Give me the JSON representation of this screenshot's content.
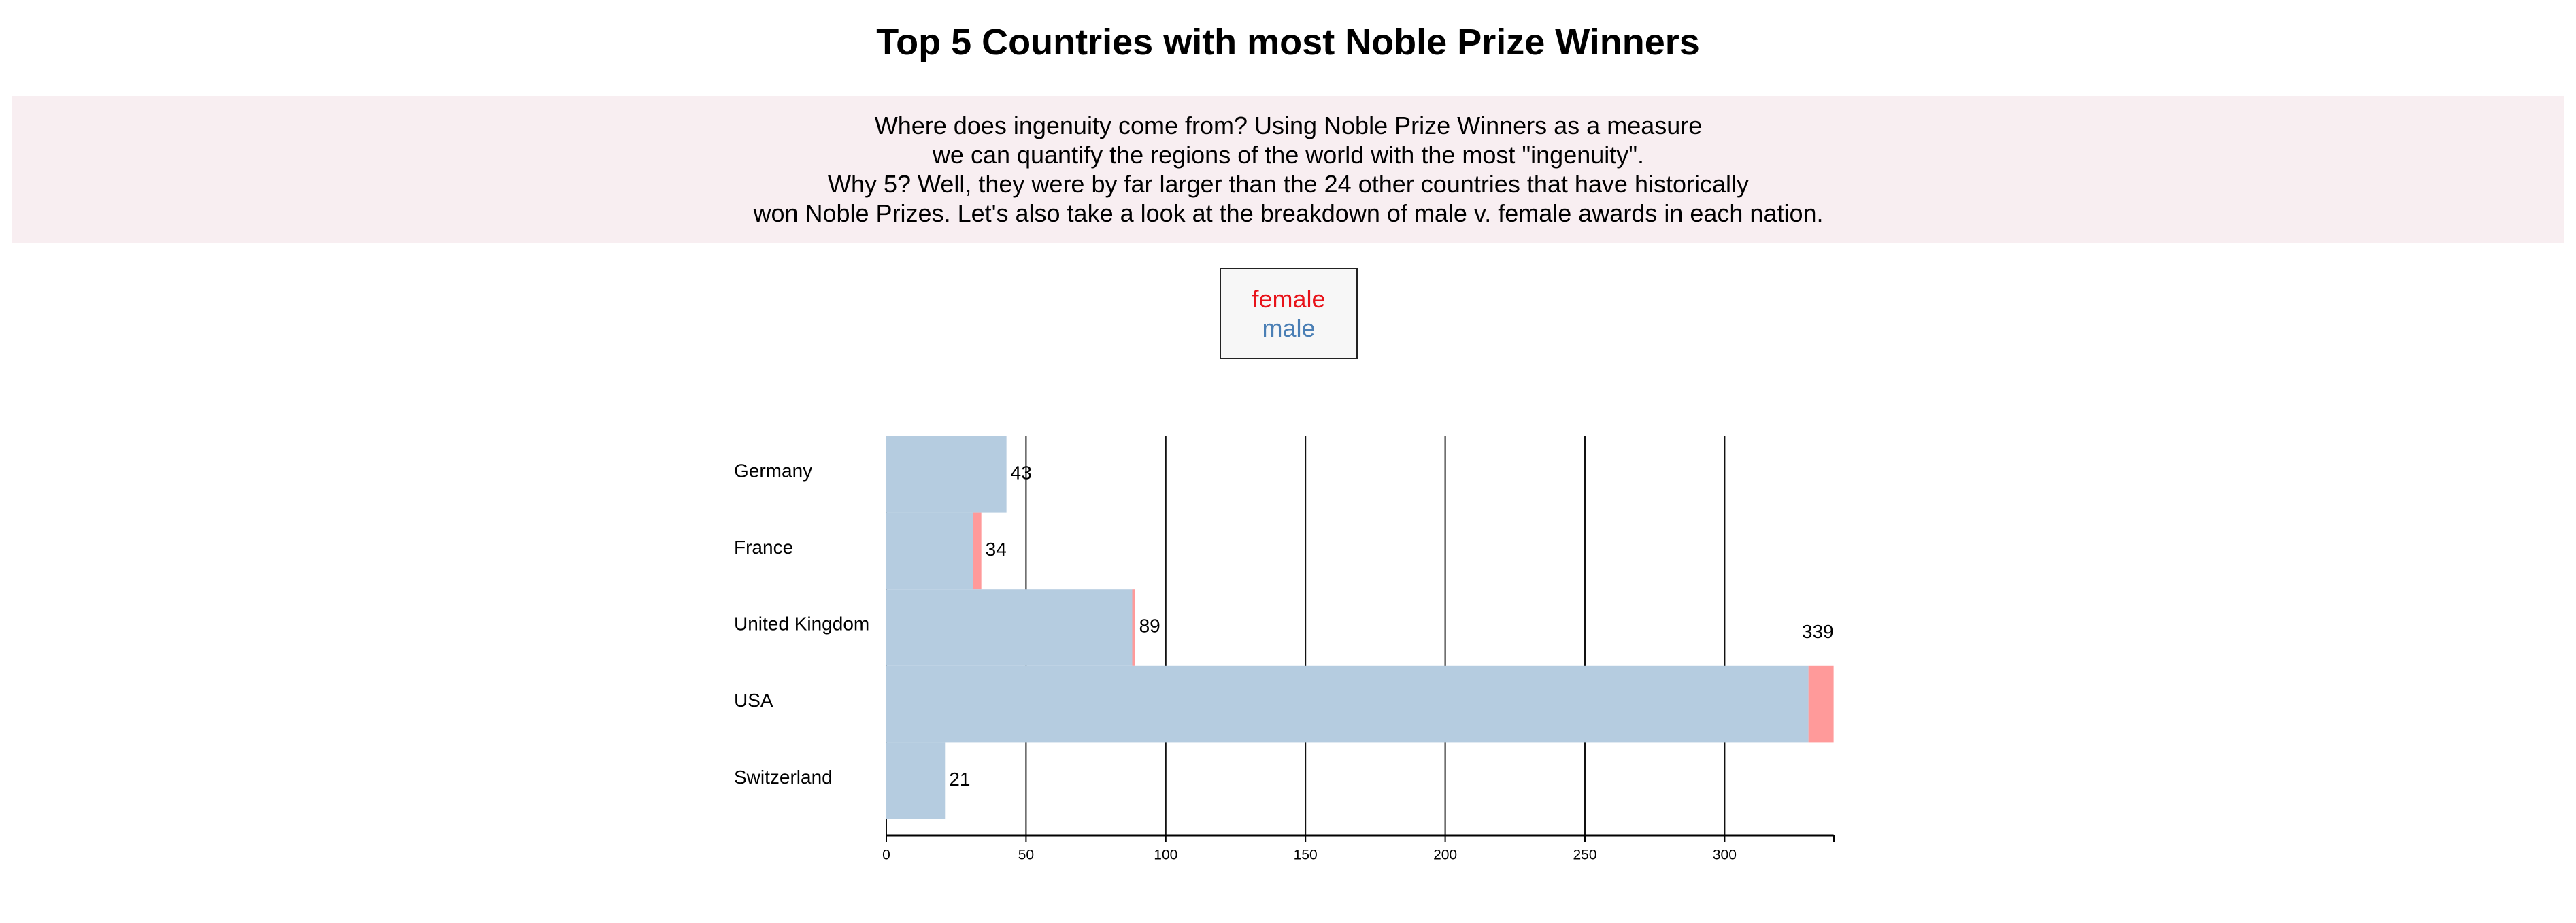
{
  "title": "Top 5 Countries with most Noble Prize Winners",
  "intro_lines": [
    "Where does ingenuity come from? Using Noble Prize Winners as a measure",
    "we can quantify the regions of the world with the most \"ingenuity\".",
    "Why 5? Well, they were by far larger than the 24 other countries that have historically",
    "won Noble Prizes. Let's also take a look at the breakdown of male v. female awards in each nation."
  ],
  "colors": {
    "female": "#ff9a9a",
    "male": "#b5cce0",
    "legend_female_text": "#e8131a",
    "legend_male_text": "#4a7fb5",
    "panel_background": "#f8eef1"
  },
  "legend": [
    {
      "label": "female",
      "color_key": "legend_female_text"
    },
    {
      "label": "male",
      "color_key": "legend_male_text"
    }
  ],
  "chart_data": {
    "type": "bar",
    "orientation": "horizontal",
    "stacked": true,
    "title": "Top 5 Countries with most Noble Prize Winners",
    "xlabel": "",
    "ylabel": "",
    "categories": [
      "Germany",
      "France",
      "United Kingdom",
      "USA",
      "Switzerland"
    ],
    "series": [
      {
        "name": "male",
        "values": [
          43,
          31,
          88,
          330,
          21
        ]
      },
      {
        "name": "female",
        "values": [
          0,
          3,
          1,
          9,
          0
        ]
      }
    ],
    "totals": [
      43,
      34,
      89,
      339,
      21
    ],
    "xlim": [
      0,
      339
    ],
    "xticks": [
      0,
      50,
      100,
      150,
      200,
      250,
      300
    ],
    "vertical_gridlines": true,
    "legend_position": "top-center"
  }
}
